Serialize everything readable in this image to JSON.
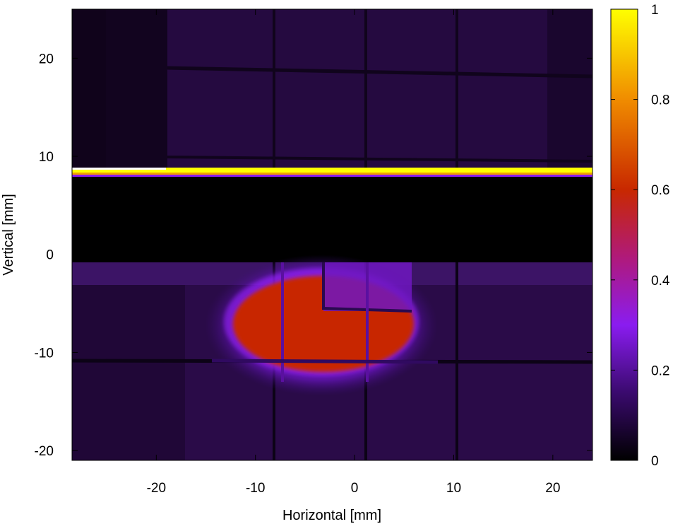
{
  "chart_data": {
    "type": "heatmap",
    "xlabel": "Horizontal [mm]",
    "ylabel": "Vertical [mm]",
    "xlim": [
      -28.5,
      24
    ],
    "ylim": [
      -21,
      25
    ],
    "x_ticks": [
      -20,
      -10,
      0,
      10,
      20
    ],
    "y_ticks": [
      -20,
      -10,
      0,
      10,
      20
    ],
    "x_tick_labels": [
      "-20",
      "-10",
      "0",
      "10",
      "20"
    ],
    "y_tick_labels": [
      "-20",
      "-10",
      "0",
      "10",
      "20"
    ],
    "colorbar": {
      "range": [
        0,
        1
      ],
      "ticks": [
        0,
        0.2,
        0.4,
        0.6,
        0.8,
        1
      ],
      "tick_labels": [
        "0",
        "0.2",
        "0.4",
        "0.6",
        "0.8",
        "1"
      ],
      "colormap_stops": [
        {
          "v": 0.0,
          "color": "#000000"
        },
        {
          "v": 0.15,
          "color": "#3a0a6e"
        },
        {
          "v": 0.3,
          "color": "#8a1cf0"
        },
        {
          "v": 0.45,
          "color": "#b01a7a"
        },
        {
          "v": 0.6,
          "color": "#c82800"
        },
        {
          "v": 0.8,
          "color": "#f08c00"
        },
        {
          "v": 1.0,
          "color": "#ffff00"
        }
      ]
    },
    "regions": [
      {
        "name": "upper background",
        "x": [
          -28.5,
          24
        ],
        "y": [
          8,
          25
        ],
        "value": 0.06
      },
      {
        "name": "bright strip",
        "x": [
          -28.5,
          24
        ],
        "y": [
          8.1,
          8.8
        ],
        "value": 1.0
      },
      {
        "name": "dark gap",
        "x": [
          -28.5,
          24
        ],
        "y": [
          -0.8,
          8.1
        ],
        "value": 0.0
      },
      {
        "name": "lower background",
        "x": [
          -28.5,
          24
        ],
        "y": [
          -21,
          -0.8
        ],
        "value": 0.08
      },
      {
        "name": "beam spot",
        "center": [
          -4,
          -7
        ],
        "radii": [
          12,
          5.5
        ],
        "value": 0.55
      }
    ]
  }
}
